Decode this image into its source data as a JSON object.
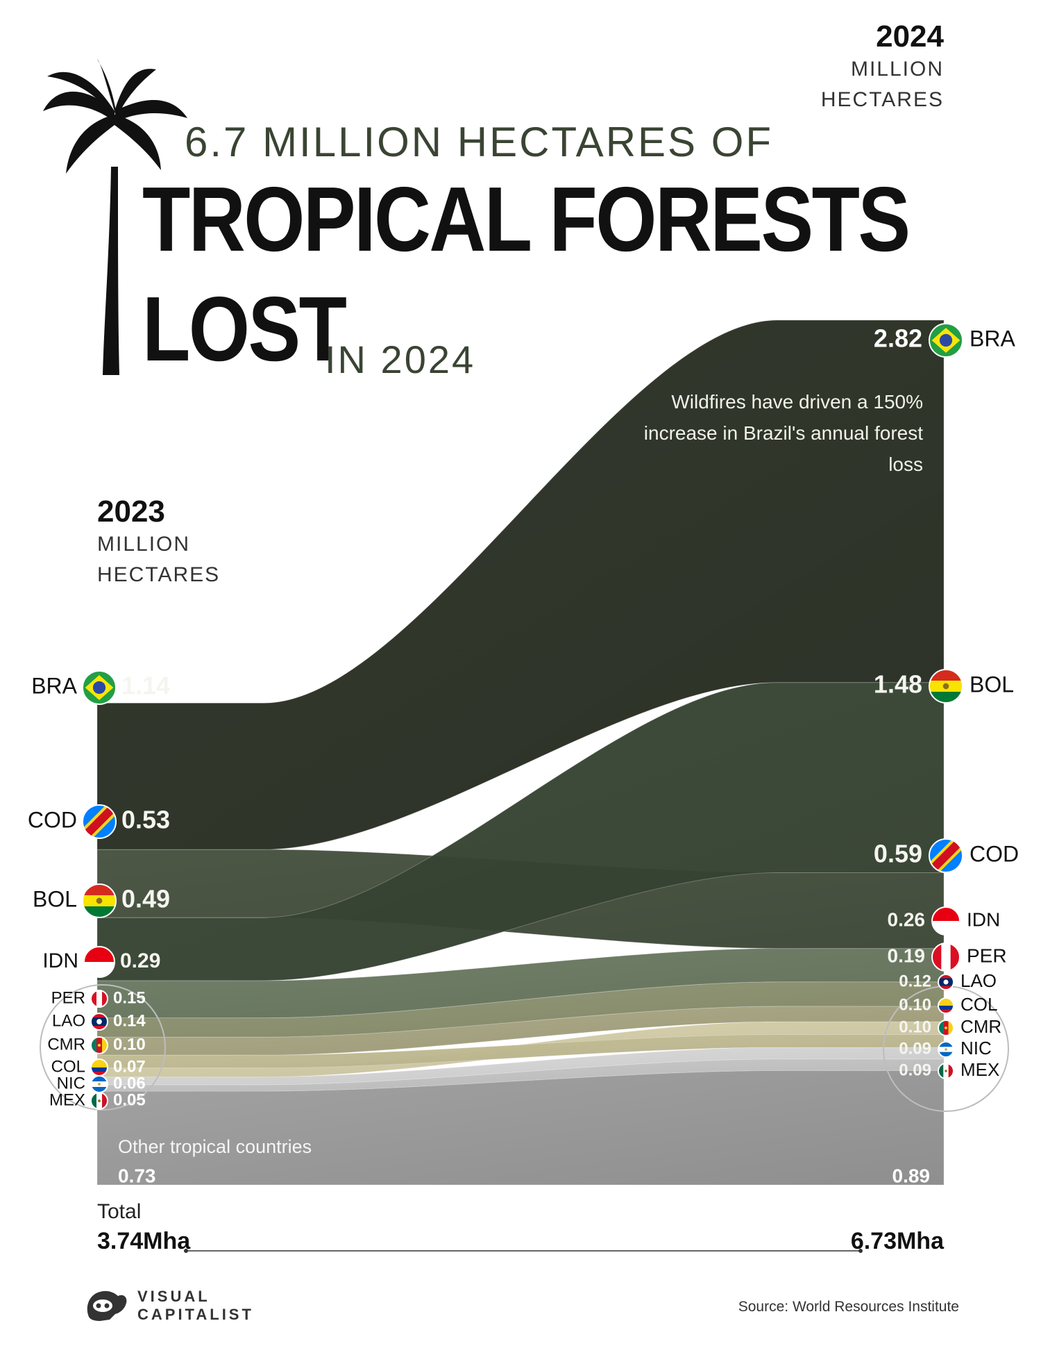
{
  "header": {
    "subtitle": "6.7 MILLION HECTARES OF",
    "title_line1": "TROPICAL FORESTS",
    "title_line2": "LOST",
    "title_suffix": "IN 2024",
    "palm_icon": "palm-tree-icon"
  },
  "note": "Wildfires have driven a 150% increase in Brazil's annual forest loss",
  "totals": {
    "label": "Total",
    "value_2023": "3.74Mha",
    "value_2024": "6.73Mha"
  },
  "other_name": "Other tropical countries",
  "source": "Source: World Resources Institute",
  "brand": {
    "line1": "VISUAL",
    "line2": "CAPITALIST",
    "icon": "visual-capitalist-logo-icon"
  },
  "chart_data": {
    "type": "sankey",
    "unit": "Million Hectares",
    "axis_2023": {
      "year": "2023",
      "unit_line1": "MILLION",
      "unit_line2": "HECTARES"
    },
    "axis_2024": {
      "year": "2024",
      "unit_line1": "MILLION",
      "unit_line2": "HECTARES"
    },
    "flows": [
      {
        "code": "BRA",
        "v2023": 1.14,
        "v2024": 2.82,
        "label2023": "1.14",
        "label2024": "2.82",
        "flag": "brazil-flag-icon",
        "color": "#2c3326"
      },
      {
        "code": "COD",
        "v2023": 0.53,
        "v2024": 0.59,
        "label2023": "0.53",
        "label2024": "0.59",
        "flag": "dr-congo-flag-icon",
        "color": "#46523f"
      },
      {
        "code": "BOL",
        "v2023": 0.49,
        "v2024": 1.48,
        "label2023": "0.49",
        "label2024": "1.48",
        "flag": "bolivia-flag-icon",
        "color": "#3b4836"
      },
      {
        "code": "IDN",
        "v2023": 0.29,
        "v2024": 0.26,
        "label2023": "0.29",
        "label2024": "0.26",
        "flag": "indonesia-flag-icon",
        "color": "#6d7d64"
      },
      {
        "code": "PER",
        "v2023": 0.15,
        "v2024": 0.19,
        "label2023": "0.15",
        "label2024": "0.19",
        "flag": "peru-flag-icon",
        "color": "#8f9673"
      },
      {
        "code": "LAO",
        "v2023": 0.14,
        "v2024": 0.12,
        "label2023": "0.14",
        "label2024": "0.12",
        "flag": "laos-flag-icon",
        "color": "#aca985"
      },
      {
        "code": "CMR",
        "v2023": 0.1,
        "v2024": 0.1,
        "label2023": "0.10",
        "label2024": "0.10",
        "flag": "cameroon-flag-icon",
        "color": "#c9c39a"
      },
      {
        "code": "COL",
        "v2023": 0.07,
        "v2024": 0.1,
        "label2023": "0.07",
        "label2024": "0.10",
        "flag": "colombia-flag-icon",
        "color": "#dcd5ae"
      },
      {
        "code": "NIC",
        "v2023": 0.06,
        "v2024": 0.09,
        "label2023": "0.06",
        "label2024": "0.09",
        "flag": "nicaragua-flag-icon",
        "color": "#dedede"
      },
      {
        "code": "MEX",
        "v2023": 0.05,
        "v2024": 0.09,
        "label2023": "0.05",
        "label2024": "0.09",
        "flag": "mexico-flag-icon",
        "color": "#cbcbcb"
      },
      {
        "code": "Other",
        "v2023": 0.73,
        "v2024": 0.89,
        "label2023": "0.73",
        "label2024": "0.89",
        "flag": "",
        "color": "#a2a2a2"
      }
    ],
    "order_2023": [
      "BRA",
      "COD",
      "BOL",
      "IDN",
      "PER",
      "LAO",
      "CMR",
      "COL",
      "NIC",
      "MEX",
      "Other"
    ],
    "order_2024": [
      "BRA",
      "BOL",
      "COD",
      "IDN",
      "PER",
      "LAO",
      "COL",
      "CMR",
      "NIC",
      "MEX",
      "Other"
    ],
    "left_labels_order": [
      "BRA",
      "COD",
      "BOL",
      "IDN",
      "PER",
      "LAO",
      "CMR",
      "COL",
      "NIC",
      "MEX"
    ],
    "right_labels_order": [
      "BRA",
      "BOL",
      "COD",
      "IDN",
      "PER",
      "LAO",
      "COL",
      "CMR",
      "NIC",
      "MEX"
    ]
  }
}
